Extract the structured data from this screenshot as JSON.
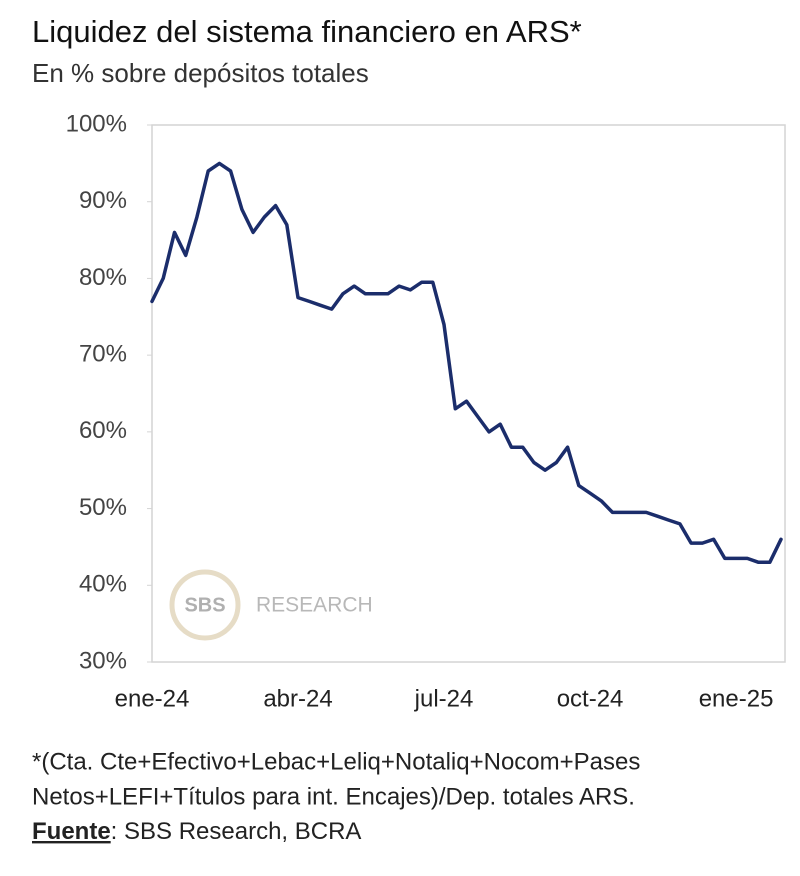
{
  "chart_data": {
    "type": "line",
    "title": "Liquidez del sistema financiero en ARS*",
    "subtitle": "En % sobre depósitos totales",
    "categories": [
      "ene-24",
      null,
      null,
      null,
      null,
      null,
      null,
      null,
      null,
      null,
      null,
      null,
      null,
      "abr-24",
      null,
      null,
      null,
      null,
      null,
      null,
      null,
      null,
      null,
      null,
      null,
      null,
      "jul-24",
      null,
      null,
      null,
      null,
      null,
      null,
      null,
      null,
      null,
      null,
      null,
      null,
      "oct-24",
      null,
      null,
      null,
      null,
      null,
      null,
      null,
      null,
      null,
      null,
      null,
      null,
      "ene-25",
      null,
      null,
      null,
      null
    ],
    "values": [
      77,
      80,
      86,
      83,
      88,
      94,
      95,
      94,
      89,
      86,
      88,
      89.5,
      87,
      77.5,
      77,
      76.5,
      76,
      78,
      79,
      78,
      78,
      78,
      79,
      78.5,
      79.5,
      79.5,
      74,
      63,
      64,
      62,
      60,
      61,
      58,
      58,
      56,
      55,
      56,
      58,
      53,
      52,
      51,
      49.5,
      49.5,
      49.5,
      49.5,
      49,
      48.5,
      48,
      45.5,
      45.5,
      46,
      43.5,
      43.5,
      43.5,
      43,
      43,
      46
    ],
    "color": "#1b2d6b",
    "ylim": [
      30,
      100
    ],
    "yticks": [
      {
        "value": 30,
        "label": "30%"
      },
      {
        "value": 40,
        "label": "40%"
      },
      {
        "value": 50,
        "label": "50%"
      },
      {
        "value": 60,
        "label": "60%"
      },
      {
        "value": 70,
        "label": "70%"
      },
      {
        "value": 80,
        "label": "80%"
      },
      {
        "value": 90,
        "label": "90%"
      },
      {
        "value": 100,
        "label": "100%"
      }
    ],
    "grid": false,
    "watermark": {
      "logo": "SBS",
      "text": "RESEARCH"
    },
    "footnote": [
      "*(Cta. Cte+Efectivo+Lebac+Leliq+Notaliq+Nocom+Pases",
      "Netos+LEFI+Títulos para int. Encajes)/Dep. totales ARS."
    ],
    "source_label": "Fuente",
    "source_text": ": SBS Research, BCRA"
  }
}
